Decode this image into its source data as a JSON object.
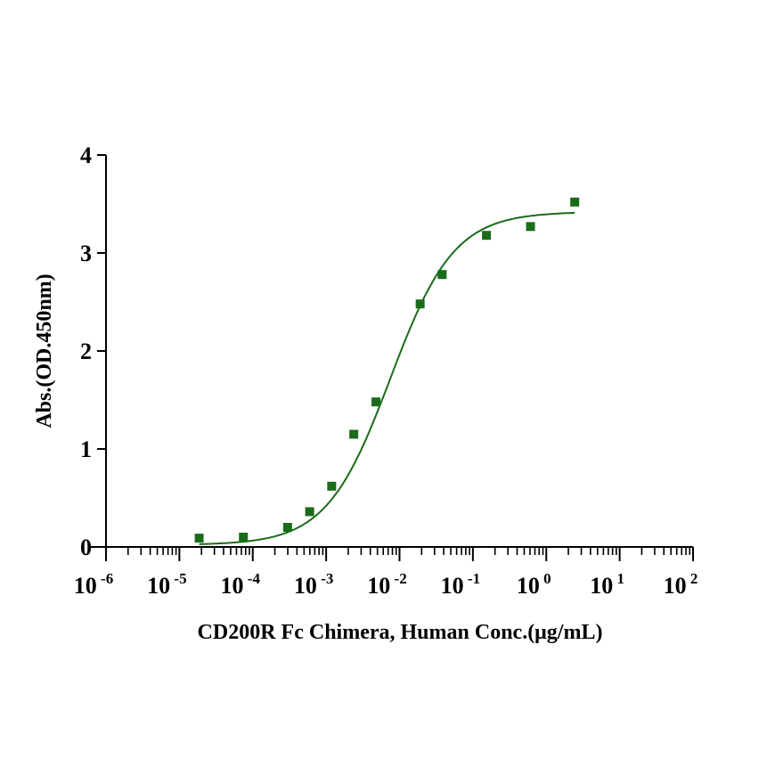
{
  "chart_data": {
    "type": "scatter",
    "title": "",
    "xlabel": "CD200R Fc Chimera, Human Conc.(μg/mL)",
    "ylabel": "Abs.(OD.450nm)",
    "xscale": "log",
    "xlim": [
      1e-06,
      100
    ],
    "ylim": [
      0,
      4
    ],
    "x_ticks": [
      {
        "base": "10",
        "exp": "-6",
        "value": -6
      },
      {
        "base": "10",
        "exp": "-5",
        "value": -5
      },
      {
        "base": "10",
        "exp": "-4",
        "value": -4
      },
      {
        "base": "10",
        "exp": "-3",
        "value": -3
      },
      {
        "base": "10",
        "exp": "-2",
        "value": -2
      },
      {
        "base": "10",
        "exp": "-1",
        "value": -1
      },
      {
        "base": "10",
        "exp": "0",
        "value": 0
      },
      {
        "base": "10",
        "exp": "1",
        "value": 1
      },
      {
        "base": "10",
        "exp": "2",
        "value": 2
      }
    ],
    "y_ticks": [
      "0",
      "1",
      "2",
      "3",
      "4"
    ],
    "grid": false,
    "color": "#1a6b1a",
    "series": [
      {
        "name": "CD200R Fc Chimera, Human",
        "x": [
          1.86e-05,
          7.45e-05,
          0.000298,
          0.000596,
          0.00119,
          0.00238,
          0.00477,
          0.0191,
          0.0381,
          0.153,
          0.61,
          2.44
        ],
        "y": [
          0.09,
          0.1,
          0.2,
          0.36,
          0.62,
          1.15,
          1.48,
          2.48,
          2.78,
          3.18,
          3.27,
          3.52
        ]
      }
    ],
    "fit": {
      "model": "4PL",
      "bottom": 0.02,
      "top": 3.42,
      "ec50": 0.0075,
      "hill": 1.0
    }
  }
}
